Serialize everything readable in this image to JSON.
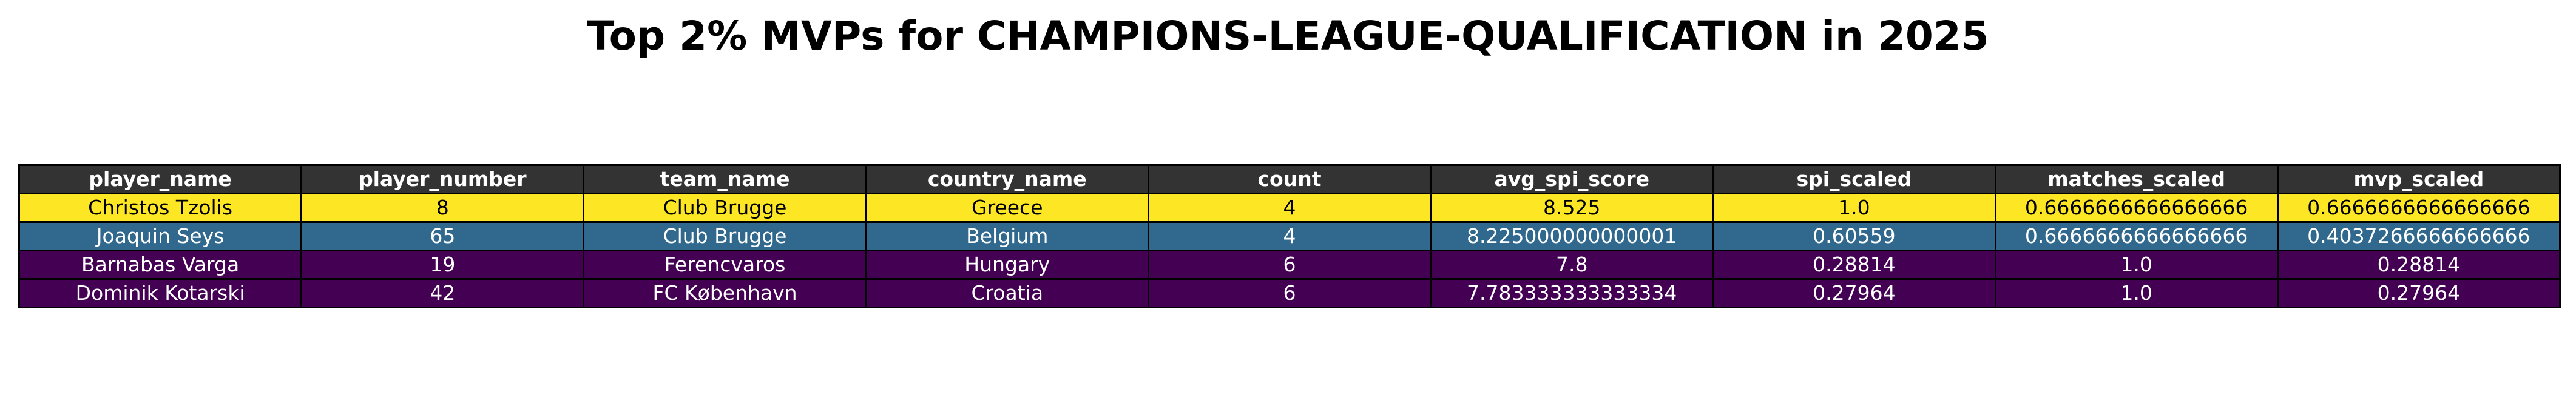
{
  "chart_data": {
    "type": "table",
    "title": "Top 2% MVPs for CHAMPIONS-LEAGUE-QUALIFICATION in 2025",
    "columns": [
      "player_name",
      "player_number",
      "team_name",
      "country_name",
      "count",
      "avg_spi_score",
      "spi_scaled",
      "matches_scaled",
      "mvp_scaled"
    ],
    "rows": [
      [
        "Christos Tzolis",
        "8",
        "Club Brugge",
        "Greece",
        "4",
        "8.525",
        "1.0",
        "0.6666666666666666",
        "0.6666666666666666"
      ],
      [
        "Joaquin Seys",
        "65",
        "Club Brugge",
        "Belgium",
        "4",
        "8.225000000000001",
        "0.60559",
        "0.6666666666666666",
        "0.4037266666666666"
      ],
      [
        "Barnabas Varga",
        "19",
        "Ferencvaros",
        "Hungary",
        "6",
        "7.8",
        "0.28814",
        "1.0",
        "0.28814"
      ],
      [
        "Dominik Kotarski",
        "42",
        "FC København",
        "Croatia",
        "6",
        "7.783333333333334",
        "0.27964",
        "1.0",
        "0.27964"
      ]
    ],
    "row_colors": [
      "#fde725",
      "#31688e",
      "#440154",
      "#440154"
    ],
    "row_text_colors": [
      "#000000",
      "#ffffff",
      "#ffffff",
      "#ffffff"
    ],
    "header_color": "#333333",
    "header_text_color": "#ffffff"
  }
}
